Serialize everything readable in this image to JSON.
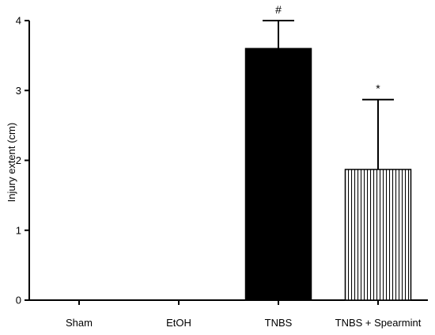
{
  "chart_data": {
    "type": "bar",
    "title": "",
    "xlabel": "",
    "ylabel": "Injury extent (cm)",
    "ylim": [
      0,
      4
    ],
    "yticks": [
      "0",
      "1",
      "2",
      "3",
      "4"
    ],
    "categories": [
      "Sham",
      "EtOH",
      "TNBS",
      "TNBS + Spearmint"
    ],
    "values": [
      0,
      0,
      3.6,
      1.87
    ],
    "error_upper": [
      0,
      0,
      0.4,
      1.0
    ],
    "annotations": [
      "",
      "",
      "#",
      "*"
    ],
    "bar_fills": [
      "solid",
      "solid",
      "solid",
      "vertical-stripes"
    ],
    "colors": {
      "bar": "#000000",
      "background": "#ffffff"
    },
    "grid": false,
    "legend": "none"
  }
}
